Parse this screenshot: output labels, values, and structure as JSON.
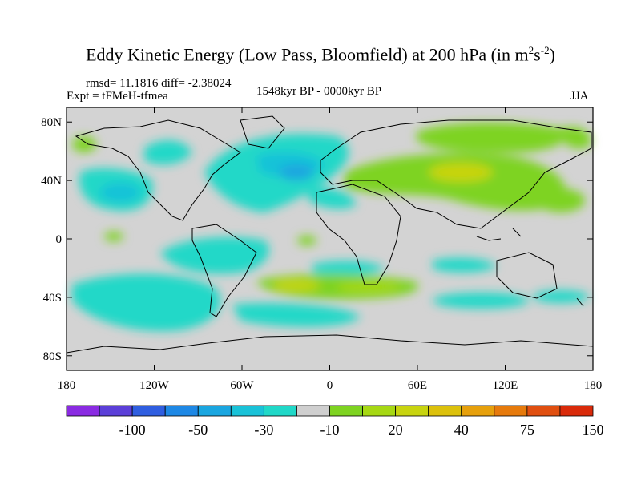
{
  "title": {
    "main": "Eddy Kinetic Energy (Low Pass, Bloomfield) at 200 hPa (in m",
    "sup1": "2",
    "mid": "s",
    "sup2": "-2",
    "end": ")"
  },
  "stats": "rmsd= 11.1816 diff= -2.38024",
  "experiment": "Expt = tFMeH-tfmea",
  "period": "1548kyr BP - 0000kyr BP",
  "season": "JJA",
  "colors": {
    "background_map": "#d3d3d3",
    "coastline": "#000000",
    "palette": [
      "#8a2be2",
      "#5b3fd8",
      "#2f5ee0",
      "#1e88e5",
      "#1aa6e0",
      "#19c2d8",
      "#20d8c8",
      "#cfcfcf",
      "#7ed321",
      "#a6d813",
      "#c8d40f",
      "#dcc10c",
      "#e6a00c",
      "#e67a0c",
      "#e04f10",
      "#d92a0a"
    ]
  },
  "chart_data": {
    "type": "heatmap",
    "projection": "cylindrical equidistant",
    "xlabel": "",
    "ylabel": "",
    "x_range": [
      -180,
      180
    ],
    "y_range": [
      -90,
      90
    ],
    "x_ticks": [
      "180",
      "120W",
      "60W",
      "0",
      "60E",
      "120E",
      "180"
    ],
    "y_ticks": [
      "80N",
      "40N",
      "0",
      "40S",
      "80S"
    ],
    "colorbar": {
      "labels": [
        "-100",
        "-50",
        "-30",
        "-10",
        "20",
        "40",
        "75",
        "150"
      ],
      "bins": 16
    },
    "regions": [
      {
        "name": "north-atlantic-negative",
        "sign": "negative",
        "lon": [
          -70,
          10
        ],
        "lat": [
          20,
          75
        ],
        "level": -20
      },
      {
        "name": "north-pacific-negative",
        "sign": "negative",
        "lon": [
          -170,
          -110
        ],
        "lat": [
          20,
          55
        ],
        "level": -15
      },
      {
        "name": "south-pacific-negative",
        "sign": "negative",
        "lon": [
          -150,
          -70
        ],
        "lat": [
          -60,
          -20
        ],
        "level": -15
      },
      {
        "name": "south-indian-positive",
        "sign": "positive",
        "lon": [
          -10,
          80
        ],
        "lat": [
          -45,
          -30
        ],
        "level": 20
      },
      {
        "name": "asia-positive",
        "sign": "positive",
        "lon": [
          10,
          150
        ],
        "lat": [
          25,
          75
        ],
        "level": 20
      },
      {
        "name": "north-pacific-east-positive",
        "sign": "positive",
        "lon": [
          120,
          180
        ],
        "lat": [
          20,
          60
        ],
        "level": 15
      }
    ]
  }
}
